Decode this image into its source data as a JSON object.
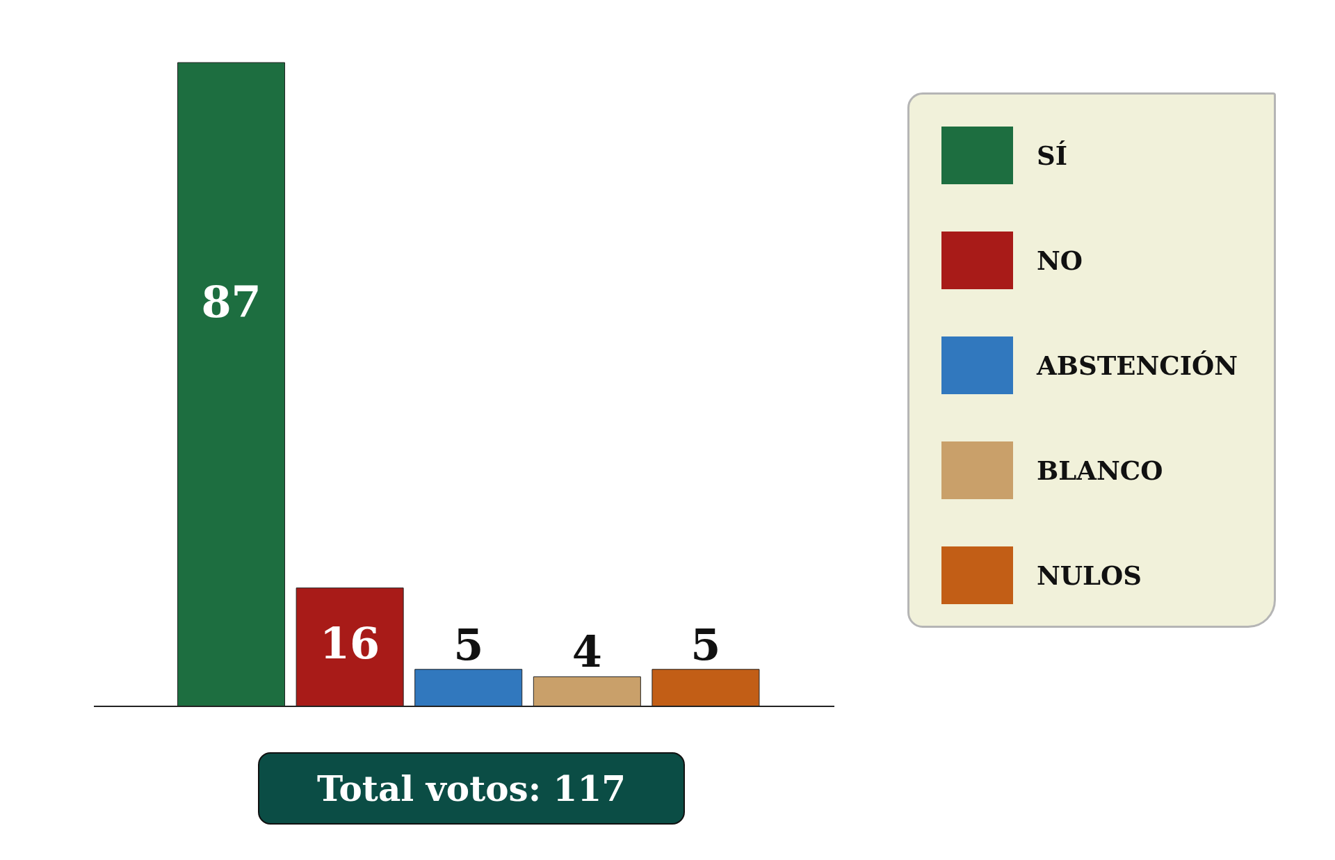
{
  "chart_data": {
    "type": "bar",
    "categories": [
      null,
      null,
      null,
      null,
      null
    ],
    "stacked": true,
    "series": [
      {
        "name": "SÍ",
        "color": "#1d6e40",
        "values": [
          87,
          null,
          null,
          null,
          null
        ]
      },
      {
        "name": "NO",
        "color": "#a81b18",
        "values": [
          null,
          16,
          null,
          null,
          null
        ]
      },
      {
        "name": "ABSTENCIÓN",
        "color": "#3178be",
        "values": [
          null,
          null,
          5,
          null,
          null
        ]
      },
      {
        "name": "BLANCO",
        "color": "#c9a06a",
        "values": [
          null,
          null,
          null,
          4,
          null
        ]
      },
      {
        "name": "NULOS",
        "color": "#c25e16",
        "values": [
          null,
          null,
          null,
          null,
          5
        ]
      }
    ],
    "data_labels": true,
    "legend": "right",
    "annotations": [
      "Total votos: 117"
    ]
  }
}
